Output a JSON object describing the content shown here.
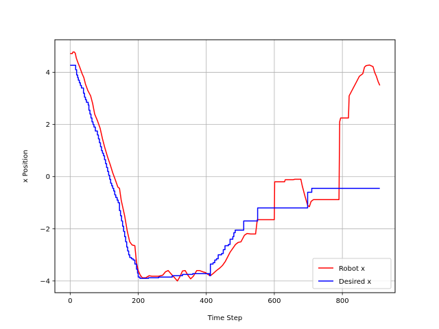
{
  "chart_data": {
    "type": "line",
    "title": "",
    "xlabel": "Time Step",
    "ylabel": "x Position",
    "xlim": [
      -45,
      955
    ],
    "ylim": [
      -4.45,
      5.25
    ],
    "xticks": [
      0,
      200,
      400,
      600,
      800
    ],
    "yticks": [
      -4,
      -2,
      0,
      2,
      4
    ],
    "xtick_labels": [
      "0",
      "200",
      "400",
      "600",
      "800"
    ],
    "ytick_labels": [
      "−4",
      "−2",
      "0",
      "2",
      "4"
    ],
    "grid": true,
    "legend_position": "lower-right",
    "series": [
      {
        "name": "Robot x",
        "color": "#ff0000",
        "step": false,
        "points": [
          [
            0,
            4.72
          ],
          [
            6,
            4.72
          ],
          [
            8,
            4.78
          ],
          [
            12,
            4.78
          ],
          [
            15,
            4.73
          ],
          [
            18,
            4.55
          ],
          [
            22,
            4.4
          ],
          [
            28,
            4.2
          ],
          [
            35,
            3.95
          ],
          [
            40,
            3.8
          ],
          [
            45,
            3.55
          ],
          [
            52,
            3.3
          ],
          [
            60,
            3.1
          ],
          [
            66,
            2.8
          ],
          [
            72,
            2.4
          ],
          [
            80,
            2.15
          ],
          [
            88,
            1.85
          ],
          [
            95,
            1.45
          ],
          [
            102,
            1.1
          ],
          [
            110,
            0.75
          ],
          [
            118,
            0.45
          ],
          [
            125,
            0.15
          ],
          [
            132,
            -0.1
          ],
          [
            140,
            -0.4
          ],
          [
            145,
            -0.45
          ],
          [
            150,
            -0.9
          ],
          [
            160,
            -1.5
          ],
          [
            168,
            -2.1
          ],
          [
            175,
            -2.5
          ],
          [
            182,
            -2.62
          ],
          [
            190,
            -2.65
          ],
          [
            195,
            -3.3
          ],
          [
            200,
            -3.6
          ],
          [
            206,
            -3.78
          ],
          [
            212,
            -3.88
          ],
          [
            222,
            -3.88
          ],
          [
            232,
            -3.8
          ],
          [
            240,
            -3.82
          ],
          [
            260,
            -3.82
          ],
          [
            272,
            -3.78
          ],
          [
            280,
            -3.65
          ],
          [
            288,
            -3.6
          ],
          [
            296,
            -3.72
          ],
          [
            305,
            -3.85
          ],
          [
            315,
            -4.0
          ],
          [
            322,
            -3.85
          ],
          [
            330,
            -3.62
          ],
          [
            338,
            -3.6
          ],
          [
            346,
            -3.78
          ],
          [
            354,
            -3.92
          ],
          [
            362,
            -3.82
          ],
          [
            372,
            -3.6
          ],
          [
            380,
            -3.6
          ],
          [
            390,
            -3.65
          ],
          [
            398,
            -3.68
          ],
          [
            405,
            -3.75
          ],
          [
            412,
            -3.8
          ],
          [
            420,
            -3.72
          ],
          [
            430,
            -3.6
          ],
          [
            440,
            -3.5
          ],
          [
            448,
            -3.4
          ],
          [
            456,
            -3.25
          ],
          [
            462,
            -3.1
          ],
          [
            470,
            -2.9
          ],
          [
            478,
            -2.75
          ],
          [
            486,
            -2.6
          ],
          [
            494,
            -2.52
          ],
          [
            502,
            -2.5
          ],
          [
            512,
            -2.25
          ],
          [
            520,
            -2.18
          ],
          [
            530,
            -2.2
          ],
          [
            545,
            -2.2
          ],
          [
            550,
            -1.65
          ],
          [
            580,
            -1.65
          ],
          [
            600,
            -1.65
          ],
          [
            601,
            -0.2
          ],
          [
            630,
            -0.2
          ],
          [
            632,
            -0.12
          ],
          [
            655,
            -0.12
          ],
          [
            660,
            -0.1
          ],
          [
            678,
            -0.1
          ],
          [
            682,
            -0.35
          ],
          [
            690,
            -0.75
          ],
          [
            698,
            -1.1
          ],
          [
            703,
            -1.15
          ],
          [
            708,
            -0.95
          ],
          [
            715,
            -0.88
          ],
          [
            790,
            -0.88
          ],
          [
            792,
            2.1
          ],
          [
            795,
            2.25
          ],
          [
            810,
            2.25
          ],
          [
            818,
            2.25
          ],
          [
            820,
            3.1
          ],
          [
            830,
            3.35
          ],
          [
            840,
            3.6
          ],
          [
            850,
            3.85
          ],
          [
            860,
            3.95
          ],
          [
            865,
            4.2
          ],
          [
            870,
            4.26
          ],
          [
            880,
            4.28
          ],
          [
            890,
            4.22
          ],
          [
            895,
            4.0
          ],
          [
            900,
            3.85
          ],
          [
            905,
            3.65
          ],
          [
            910,
            3.5
          ]
        ]
      },
      {
        "name": "Desired x",
        "color": "#0000ff",
        "step": true,
        "points": [
          [
            0,
            4.27
          ],
          [
            15,
            4.27
          ],
          [
            16,
            4.1
          ],
          [
            19,
            3.9
          ],
          [
            22,
            3.8
          ],
          [
            24,
            3.7
          ],
          [
            27,
            3.6
          ],
          [
            30,
            3.5
          ],
          [
            33,
            3.4
          ],
          [
            39,
            3.2
          ],
          [
            42,
            3.05
          ],
          [
            45,
            2.95
          ],
          [
            48,
            2.85
          ],
          [
            53,
            2.75
          ],
          [
            55,
            2.55
          ],
          [
            58,
            2.4
          ],
          [
            61,
            2.25
          ],
          [
            64,
            2.1
          ],
          [
            67,
            2.0
          ],
          [
            70,
            1.9
          ],
          [
            74,
            1.75
          ],
          [
            80,
            1.6
          ],
          [
            83,
            1.45
          ],
          [
            86,
            1.3
          ],
          [
            89,
            1.15
          ],
          [
            92,
            1.0
          ],
          [
            95,
            0.9
          ],
          [
            98,
            0.8
          ],
          [
            101,
            0.65
          ],
          [
            104,
            0.5
          ],
          [
            107,
            0.35
          ],
          [
            110,
            0.2
          ],
          [
            113,
            0.05
          ],
          [
            116,
            -0.1
          ],
          [
            119,
            -0.25
          ],
          [
            122,
            -0.35
          ],
          [
            125,
            -0.45
          ],
          [
            128,
            -0.55
          ],
          [
            131,
            -0.7
          ],
          [
            134,
            -0.8
          ],
          [
            138,
            -0.9
          ],
          [
            141,
            -1.0
          ],
          [
            145,
            -1.3
          ],
          [
            148,
            -1.5
          ],
          [
            151,
            -1.7
          ],
          [
            154,
            -1.9
          ],
          [
            157,
            -2.1
          ],
          [
            160,
            -2.3
          ],
          [
            163,
            -2.5
          ],
          [
            166,
            -2.7
          ],
          [
            169,
            -2.85
          ],
          [
            172,
            -3.0
          ],
          [
            175,
            -3.1
          ],
          [
            180,
            -3.15
          ],
          [
            185,
            -3.2
          ],
          [
            190,
            -3.35
          ],
          [
            195,
            -3.55
          ],
          [
            198,
            -3.7
          ],
          [
            200,
            -3.85
          ],
          [
            205,
            -3.9
          ],
          [
            230,
            -3.88
          ],
          [
            260,
            -3.85
          ],
          [
            300,
            -3.8
          ],
          [
            330,
            -3.75
          ],
          [
            360,
            -3.72
          ],
          [
            380,
            -3.72
          ],
          [
            395,
            -3.72
          ],
          [
            410,
            -3.8
          ],
          [
            412,
            -3.35
          ],
          [
            420,
            -3.3
          ],
          [
            425,
            -3.2
          ],
          [
            430,
            -3.15
          ],
          [
            435,
            -3.0
          ],
          [
            445,
            -2.95
          ],
          [
            450,
            -2.8
          ],
          [
            455,
            -2.65
          ],
          [
            465,
            -2.6
          ],
          [
            470,
            -2.4
          ],
          [
            478,
            -2.3
          ],
          [
            481,
            -2.15
          ],
          [
            485,
            -2.05
          ],
          [
            500,
            -2.05
          ],
          [
            510,
            -1.7
          ],
          [
            540,
            -1.7
          ],
          [
            551,
            -1.2
          ],
          [
            580,
            -1.2
          ],
          [
            620,
            -1.2
          ],
          [
            690,
            -1.2
          ],
          [
            698,
            -0.6
          ],
          [
            710,
            -0.45
          ],
          [
            760,
            -0.45
          ],
          [
            800,
            -0.45
          ],
          [
            860,
            -0.45
          ],
          [
            910,
            -0.45
          ]
        ]
      }
    ]
  }
}
